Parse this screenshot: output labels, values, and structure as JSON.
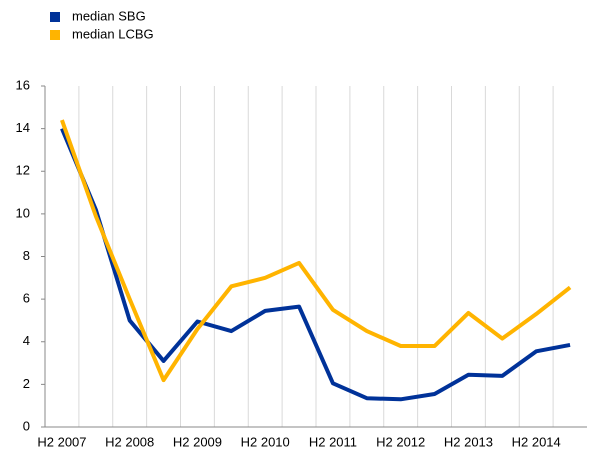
{
  "chart_data": {
    "type": "line",
    "categories": [
      "H2 2007",
      null,
      "H2 2008",
      null,
      "H2 2009",
      null,
      "H2 2010",
      null,
      "H2 2011",
      null,
      "H2 2012",
      null,
      "H2 2013",
      null,
      "H2 2014",
      null
    ],
    "series": [
      {
        "name": "median SBG",
        "color": "#003299",
        "values": [
          14.0,
          10.2,
          5.0,
          3.1,
          4.95,
          4.5,
          5.45,
          5.65,
          2.05,
          1.35,
          1.3,
          1.55,
          2.45,
          2.4,
          3.55,
          3.85
        ]
      },
      {
        "name": "median LCBG",
        "color": "#ffb400",
        "values": [
          14.4,
          9.9,
          6.0,
          2.2,
          4.6,
          6.6,
          7.0,
          7.7,
          5.5,
          4.5,
          3.8,
          3.8,
          5.35,
          4.15,
          5.3,
          6.55
        ]
      }
    ],
    "ylim": [
      0,
      16
    ],
    "yticks": [
      0,
      2,
      4,
      6,
      8,
      10,
      12,
      14,
      16
    ],
    "grid": true,
    "legend": "top-left"
  }
}
